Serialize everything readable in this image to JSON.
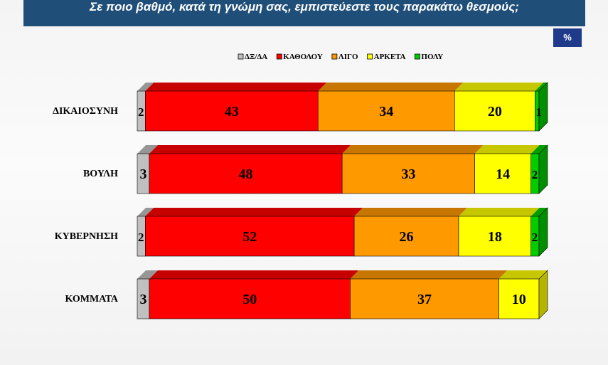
{
  "header": {
    "title": "Σε ποιο βαθμό, κατά τη γνώμη σας, εμπιστεύεστε τους παρακάτω θεσμούς;",
    "unit": "%"
  },
  "chart_data": {
    "type": "bar",
    "orientation": "horizontal",
    "stacked": true,
    "percent": true,
    "legend_position": "top",
    "categories": [
      "ΔΙΚΑΙΟΣΥΝΗ",
      "ΒΟΥΛΗ",
      "ΚΥΒΕΡΝΗΣΗ",
      "ΚΟΜΜΑΤΑ"
    ],
    "series": [
      {
        "name": "ΔΞ/ΔΑ",
        "color": "#c0c0c0",
        "values": [
          2,
          3,
          2,
          3
        ]
      },
      {
        "name": "ΚΑΘΟΛΟΥ",
        "color": "#ff0000",
        "values": [
          43,
          48,
          52,
          50
        ]
      },
      {
        "name": "ΛΙΓΟ",
        "color": "#ff9900",
        "values": [
          34,
          33,
          26,
          37
        ]
      },
      {
        "name": "ΑΡΚΕΤΑ",
        "color": "#ffff00",
        "values": [
          20,
          14,
          18,
          10
        ]
      },
      {
        "name": "ΠΟΛΥ",
        "color": "#00cc00",
        "values": [
          1,
          2,
          2,
          0
        ]
      }
    ]
  }
}
